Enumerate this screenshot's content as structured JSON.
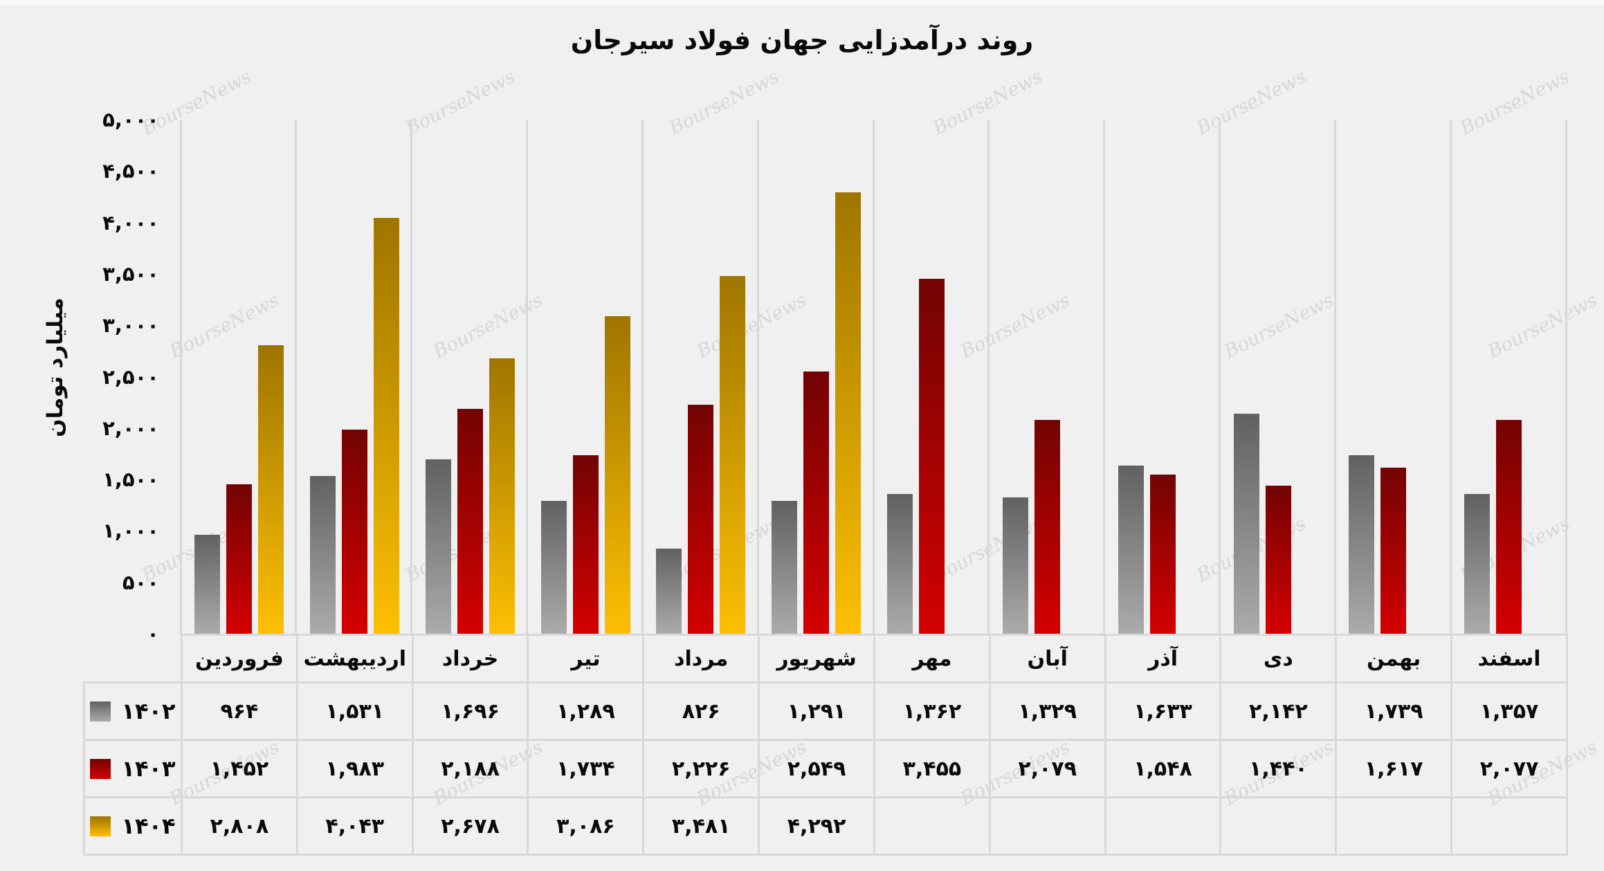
{
  "page": {
    "background": "#f0f0f0",
    "grid_color": "#d8d8d8",
    "text_color": "#0a0a0a"
  },
  "watermark": {
    "text": "BourseNews"
  },
  "chart_data": {
    "type": "bar",
    "title": "روند درآمدزایی جهان فولاد سیرجان",
    "ylabel": "میلیارد تومان",
    "xlabel": "",
    "ylim": [
      0,
      5000
    ],
    "ytick_step": 500,
    "grid": "vertical-category-separators-only",
    "legend_position": "left-column-of-data-table",
    "yticks": [
      {
        "value": 0,
        "label": "۰"
      },
      {
        "value": 500,
        "label": "۵۰۰"
      },
      {
        "value": 1000,
        "label": "۱,۰۰۰"
      },
      {
        "value": 1500,
        "label": "۱,۵۰۰"
      },
      {
        "value": 2000,
        "label": "۲,۰۰۰"
      },
      {
        "value": 2500,
        "label": "۲,۵۰۰"
      },
      {
        "value": 3000,
        "label": "۳,۰۰۰"
      },
      {
        "value": 3500,
        "label": "۳,۵۰۰"
      },
      {
        "value": 4000,
        "label": "۴,۰۰۰"
      },
      {
        "value": 4500,
        "label": "۴,۵۰۰"
      },
      {
        "value": 5000,
        "label": "۵,۰۰۰"
      }
    ],
    "categories": [
      "فروردین",
      "اردیبهشت",
      "خرداد",
      "تیر",
      "مرداد",
      "شهریور",
      "مهر",
      "آبان",
      "آذر",
      "دی",
      "بهمن",
      "اسفند"
    ],
    "series": [
      {
        "id": "1402",
        "name": "۱۴۰۲",
        "color_top": "#616161",
        "color_bottom": "#ababab",
        "values": [
          964,
          1531,
          1696,
          1289,
          826,
          1291,
          1362,
          1329,
          1633,
          2142,
          1739,
          1357
        ],
        "labels": [
          "۹۶۴",
          "۱,۵۳۱",
          "۱,۶۹۶",
          "۱,۲۸۹",
          "۸۲۶",
          "۱,۲۹۱",
          "۱,۳۶۲",
          "۱,۳۲۹",
          "۱,۶۳۳",
          "۲,۱۴۲",
          "۱,۷۳۹",
          "۱,۳۵۷"
        ]
      },
      {
        "id": "1403",
        "name": "۱۴۰۳",
        "color_top": "#730303",
        "color_bottom": "#d40000",
        "values": [
          1452,
          1983,
          2188,
          1734,
          2226,
          2549,
          3455,
          2079,
          1548,
          1440,
          1617,
          2077
        ],
        "labels": [
          "۱,۴۵۲",
          "۱,۹۸۳",
          "۲,۱۸۸",
          "۱,۷۳۴",
          "۲,۲۲۶",
          "۲,۵۴۹",
          "۳,۴۵۵",
          "۲,۰۷۹",
          "۱,۵۴۸",
          "۱,۴۴۰",
          "۱,۶۱۷",
          "۲,۰۷۷"
        ]
      },
      {
        "id": "1404",
        "name": "۱۴۰۴",
        "color_top": "#9e7500",
        "color_bottom": "#fdbf03",
        "values": [
          2808,
          4043,
          2678,
          3086,
          3481,
          4292,
          null,
          null,
          null,
          null,
          null,
          null
        ],
        "labels": [
          "۲,۸۰۸",
          "۴,۰۴۳",
          "۲,۶۷۸",
          "۳,۰۸۶",
          "۳,۴۸۱",
          "۴,۲۹۲",
          "",
          "",
          "",
          "",
          "",
          ""
        ]
      }
    ]
  }
}
